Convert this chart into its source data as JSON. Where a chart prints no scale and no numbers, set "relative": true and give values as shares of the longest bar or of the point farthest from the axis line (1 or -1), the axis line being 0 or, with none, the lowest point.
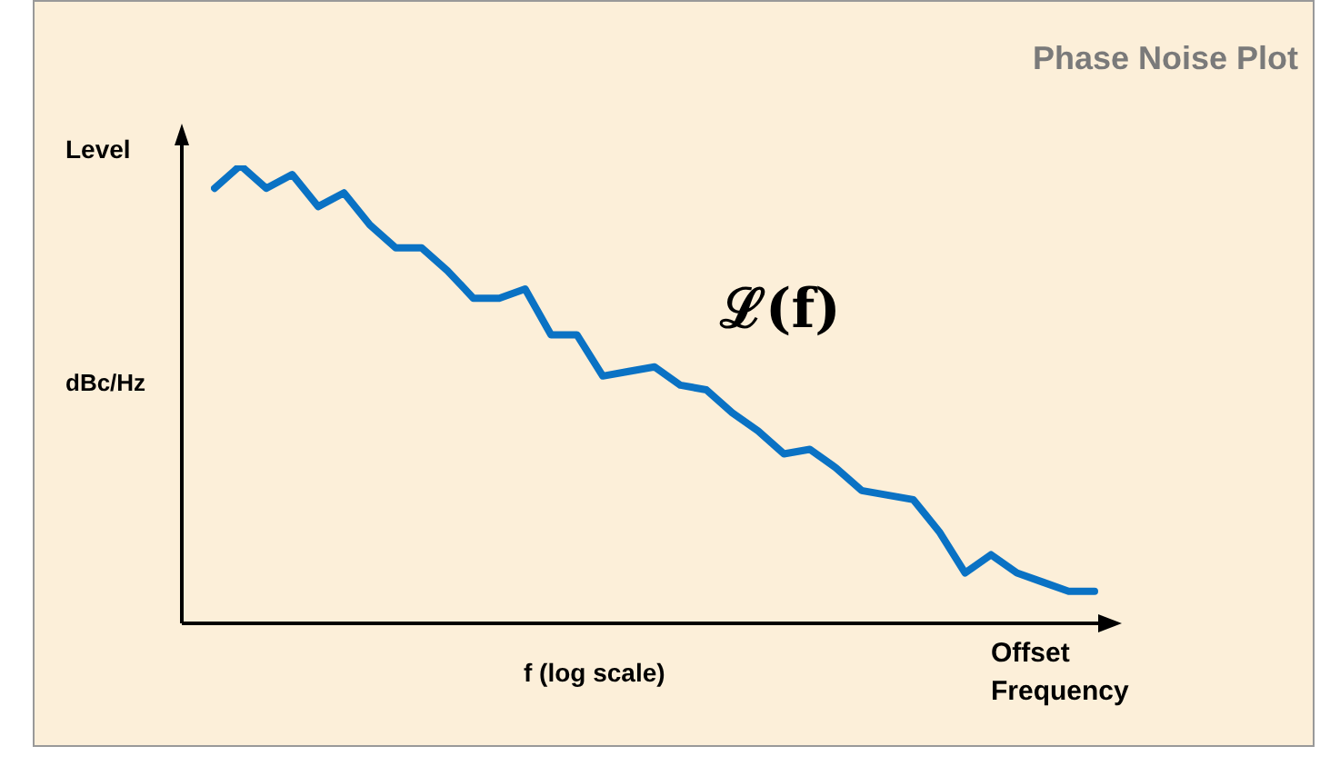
{
  "chart_data": {
    "type": "line",
    "title": "Phase Noise Plot",
    "ylabel": "Level",
    "xlabel": "f (log scale)",
    "annotations": [
      "dBc/Hz",
      "Offset Frequency",
      "ℒ(f)"
    ],
    "categories": [
      null,
      null,
      null,
      null,
      null,
      null,
      null,
      null,
      null,
      null,
      null,
      null,
      null,
      null,
      null,
      null,
      null,
      null,
      null,
      null,
      null,
      null,
      null,
      null,
      null,
      null,
      null,
      null,
      null,
      null,
      null,
      null,
      null,
      null,
      null
    ],
    "values": [
      0.95,
      1,
      0.95,
      0.98,
      0.91,
      0.94,
      0.87,
      0.82,
      0.82,
      0.77,
      0.71,
      0.71,
      0.73,
      0.63,
      0.63,
      0.54,
      0.55,
      0.56,
      0.52,
      0.51,
      0.46,
      0.42,
      0.37,
      0.38,
      0.34,
      0.29,
      0.28,
      0.27,
      0.2,
      0.11,
      0.15,
      0.11,
      0.09,
      0.07,
      0.07
    ],
    "color": "#0a72c4",
    "relative": true,
    "legend": false
  }
}
